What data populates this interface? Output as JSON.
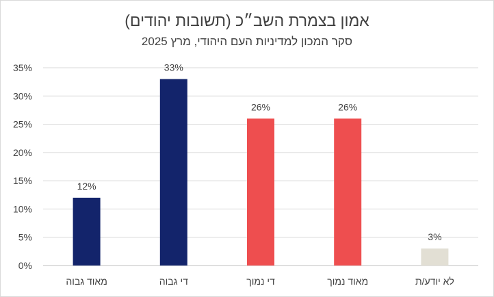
{
  "chart_data": {
    "type": "bar",
    "title": "אמון בצמרת השב״כ (תשובות יהודים)",
    "subtitle": "סקר המכון למדיניות העם היהודי, מרץ 2025",
    "categories": [
      "מאוד גבוה",
      "די גבוה",
      "די נמוך",
      "מאוד נמוך",
      "לא יודע/ת"
    ],
    "values": [
      12,
      33,
      26,
      26,
      3
    ],
    "data_labels": [
      "12%",
      "33%",
      "26%",
      "26%",
      "3%"
    ],
    "bar_colors": [
      "#13246b",
      "#13246b",
      "#ee4e4f",
      "#ee4e4f",
      "#e2dfd4"
    ],
    "ylim": [
      0,
      35
    ],
    "y_ticks": [
      0,
      5,
      10,
      15,
      20,
      25,
      30,
      35
    ],
    "y_tick_labels": [
      "0%",
      "5%",
      "10%",
      "15%",
      "20%",
      "25%",
      "30%",
      "35%"
    ],
    "grid": true,
    "legend": "none",
    "xlabel": "",
    "ylabel": ""
  }
}
